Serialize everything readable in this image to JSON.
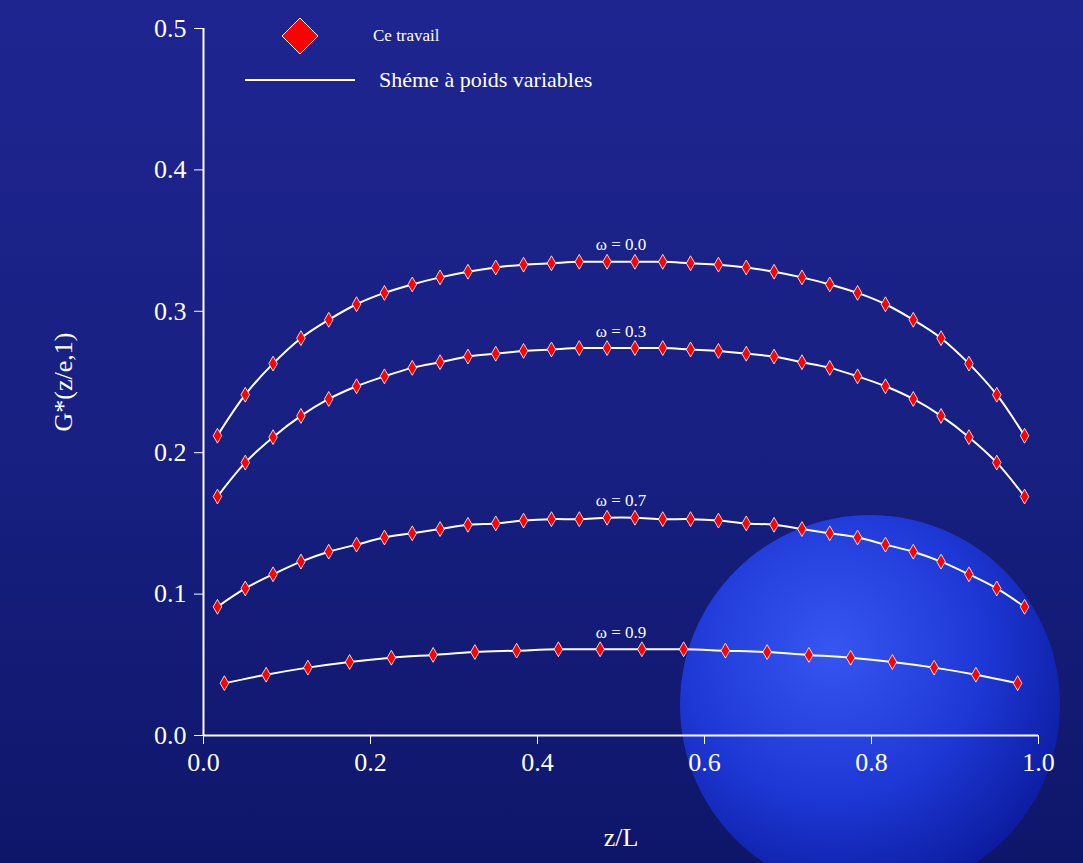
{
  "chart_data": {
    "type": "line",
    "x_label": "z/L",
    "y_label": "G*(z/e,1)",
    "xlim": [
      0,
      1
    ],
    "ylim": [
      0,
      0.5
    ],
    "xticks": [
      {
        "value": 0,
        "label": "0.0"
      },
      0.2,
      0.4,
      0.6,
      0.8,
      {
        "value": 1,
        "label": "1.0"
      }
    ],
    "yticks": [
      {
        "value": 0,
        "label": "0.0"
      },
      0.1,
      0.2,
      0.3,
      0.4,
      0.5
    ],
    "legend": "top-left",
    "legend_entries": [
      {
        "name": "Ce travail",
        "color": "#ff0000",
        "marker": "diamond"
      },
      {
        "name": "Shéme à poids variables",
        "color": "#ffffff",
        "line_style": "solid"
      }
    ],
    "curves": [
      {
        "label": "ω = 0.0",
        "x": [
          0.0167,
          0.05,
          0.0833,
          0.1167,
          0.15,
          0.1833,
          0.2167,
          0.25,
          0.2833,
          0.3167,
          0.35,
          0.3833,
          0.4167,
          0.45,
          0.4833,
          0.5167,
          0.55,
          0.5833,
          0.6167,
          0.65,
          0.6833,
          0.7167,
          0.75,
          0.7833,
          0.8167,
          0.85,
          0.8833,
          0.9167,
          0.95,
          0.9833
        ],
        "values": [
          0.212,
          0.241,
          0.263,
          0.281,
          0.294,
          0.305,
          0.313,
          0.319,
          0.324,
          0.328,
          0.331,
          0.333,
          0.334,
          0.335,
          0.335,
          0.335,
          0.335,
          0.334,
          0.333,
          0.331,
          0.328,
          0.324,
          0.319,
          0.313,
          0.305,
          0.294,
          0.281,
          0.263,
          0.241,
          0.212
        ]
      },
      {
        "label": "ω = 0.3",
        "x": [
          0.0167,
          0.05,
          0.0833,
          0.1167,
          0.15,
          0.1833,
          0.2167,
          0.25,
          0.2833,
          0.3167,
          0.35,
          0.3833,
          0.4167,
          0.45,
          0.4833,
          0.5167,
          0.55,
          0.5833,
          0.6167,
          0.65,
          0.6833,
          0.7167,
          0.75,
          0.7833,
          0.8167,
          0.85,
          0.8833,
          0.9167,
          0.95,
          0.9833
        ],
        "values": [
          0.169,
          0.193,
          0.211,
          0.226,
          0.238,
          0.247,
          0.254,
          0.26,
          0.264,
          0.268,
          0.27,
          0.272,
          0.273,
          0.274,
          0.274,
          0.274,
          0.274,
          0.273,
          0.272,
          0.27,
          0.268,
          0.264,
          0.26,
          0.254,
          0.247,
          0.238,
          0.226,
          0.211,
          0.193,
          0.169
        ]
      },
      {
        "label": "ω = 0.7",
        "x": [
          0.0167,
          0.05,
          0.0833,
          0.1167,
          0.15,
          0.1833,
          0.2167,
          0.25,
          0.2833,
          0.3167,
          0.35,
          0.3833,
          0.4167,
          0.45,
          0.4833,
          0.5167,
          0.55,
          0.5833,
          0.6167,
          0.65,
          0.6833,
          0.7167,
          0.75,
          0.7833,
          0.8167,
          0.85,
          0.8833,
          0.9167,
          0.95,
          0.9833
        ],
        "values": [
          0.091,
          0.104,
          0.114,
          0.123,
          0.13,
          0.135,
          0.14,
          0.143,
          0.146,
          0.149,
          0.15,
          0.152,
          0.153,
          0.153,
          0.154,
          0.154,
          0.153,
          0.153,
          0.152,
          0.15,
          0.149,
          0.146,
          0.143,
          0.14,
          0.135,
          0.13,
          0.123,
          0.114,
          0.104,
          0.091
        ]
      },
      {
        "label": "ω = 0.9",
        "x": [
          0.025,
          0.075,
          0.125,
          0.175,
          0.225,
          0.275,
          0.325,
          0.375,
          0.425,
          0.475,
          0.525,
          0.575,
          0.625,
          0.675,
          0.725,
          0.775,
          0.825,
          0.875,
          0.925,
          0.975
        ],
        "values": [
          0.037,
          0.043,
          0.048,
          0.052,
          0.055,
          0.057,
          0.059,
          0.06,
          0.061,
          0.061,
          0.061,
          0.061,
          0.06,
          0.059,
          0.057,
          0.055,
          0.052,
          0.048,
          0.043,
          0.037
        ]
      }
    ]
  }
}
